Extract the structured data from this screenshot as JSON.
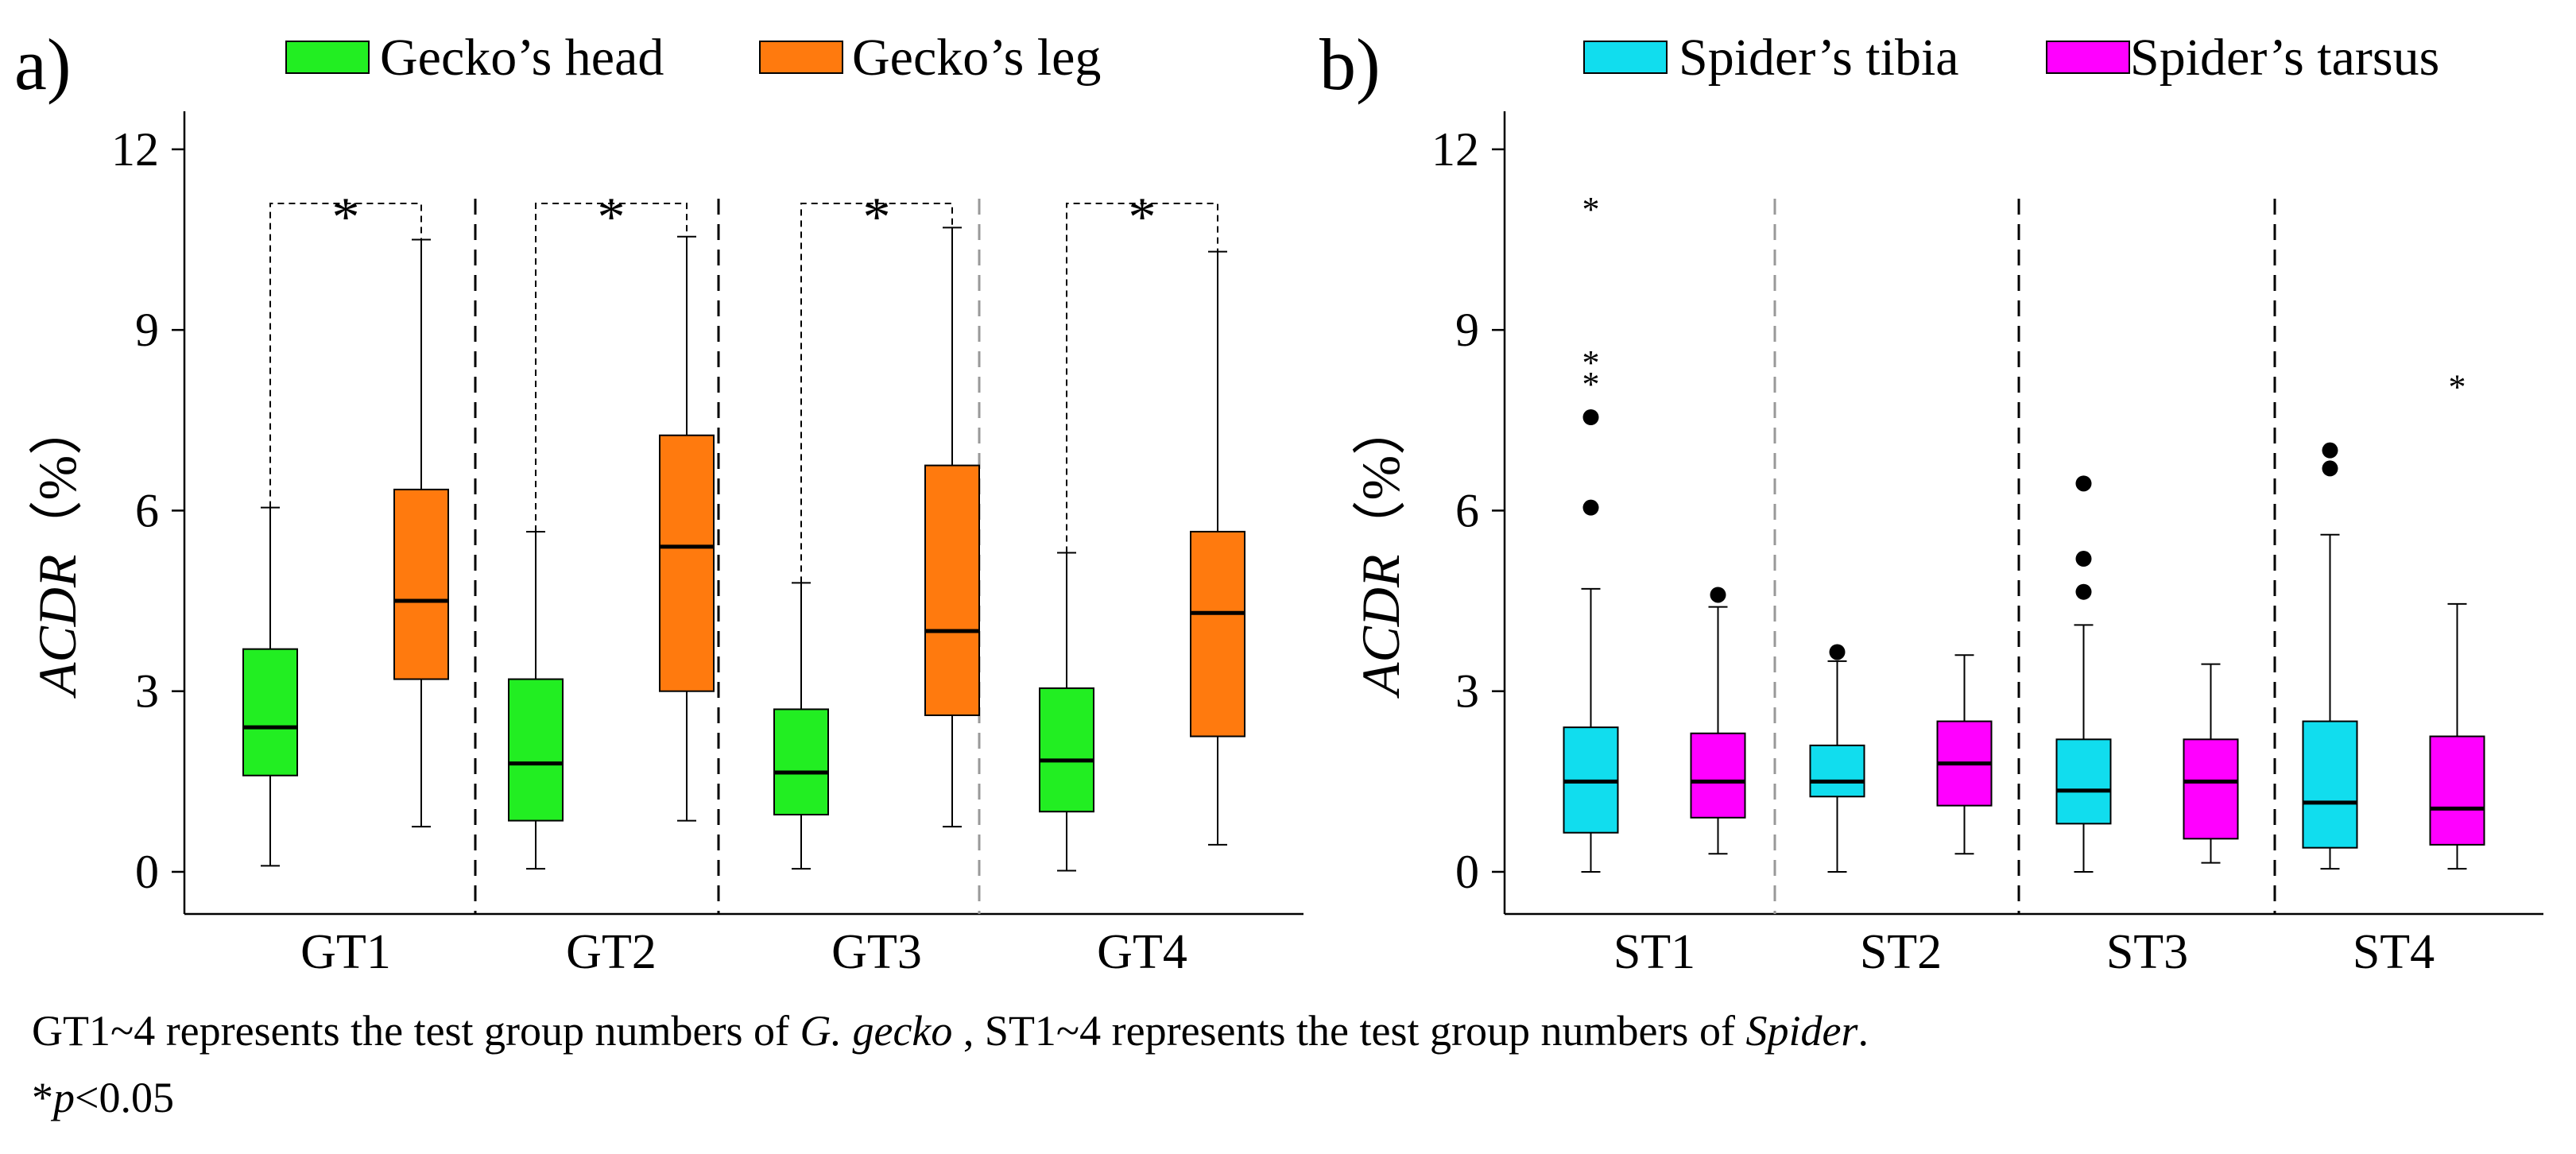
{
  "chart_data": [
    {
      "type": "boxplot",
      "panel_label": "a)",
      "ylabel_italic": "ACDR",
      "ylabel_unit": "（%）",
      "yticks": [
        0,
        3,
        6,
        9,
        12
      ],
      "ylim": [
        -0.7,
        12.5
      ],
      "categories": [
        "GT1",
        "GT2",
        "GT3",
        "GT4"
      ],
      "series": [
        {
          "name": "Gecko’s head",
          "color": "#22ee22",
          "boxes": [
            {
              "min": 0.1,
              "q1": 1.6,
              "median": 2.4,
              "q3": 3.7,
              "max": 6.05
            },
            {
              "min": 0.05,
              "q1": 0.85,
              "median": 1.8,
              "q3": 3.2,
              "max": 5.65
            },
            {
              "min": 0.05,
              "q1": 0.95,
              "median": 1.65,
              "q3": 2.7,
              "max": 4.8
            },
            {
              "min": 0.02,
              "q1": 1.0,
              "median": 1.85,
              "q3": 3.05,
              "max": 5.3
            }
          ]
        },
        {
          "name": "Gecko’s leg",
          "color": "#ff7a0e",
          "boxes": [
            {
              "min": 0.75,
              "q1": 3.2,
              "median": 4.5,
              "q3": 6.35,
              "max": 10.5
            },
            {
              "min": 0.85,
              "q1": 3.0,
              "median": 5.4,
              "q3": 7.25,
              "max": 10.55
            },
            {
              "min": 0.75,
              "q1": 2.6,
              "median": 4.0,
              "q3": 6.75,
              "max": 10.7
            },
            {
              "min": 0.45,
              "q1": 2.25,
              "median": 4.3,
              "q3": 5.65,
              "max": 10.3
            }
          ]
        }
      ],
      "outliers": [],
      "significance": [
        {
          "group": "GT1",
          "label": "*",
          "bracket_y": 11.1
        },
        {
          "group": "GT2",
          "label": "*",
          "bracket_y": 11.1
        },
        {
          "group": "GT3",
          "label": "*",
          "bracket_y": 11.1
        },
        {
          "group": "GT4",
          "label": "*",
          "bracket_y": 11.1
        }
      ]
    },
    {
      "type": "boxplot",
      "panel_label": "b)",
      "ylabel_italic": "ACDR",
      "ylabel_unit": "（%）",
      "yticks": [
        0,
        3,
        6,
        9,
        12
      ],
      "ylim": [
        -0.7,
        12.5
      ],
      "categories": [
        "ST1",
        "ST2",
        "ST3",
        "ST4"
      ],
      "series": [
        {
          "name": "Spider’s tibia",
          "color": "#11ddee",
          "boxes": [
            {
              "min": 0.0,
              "q1": 0.65,
              "median": 1.5,
              "q3": 2.4,
              "max": 4.7
            },
            {
              "min": 0.0,
              "q1": 1.25,
              "median": 1.5,
              "q3": 2.1,
              "max": 3.5
            },
            {
              "min": 0.0,
              "q1": 0.8,
              "median": 1.35,
              "q3": 2.2,
              "max": 4.1
            },
            {
              "min": 0.05,
              "q1": 0.4,
              "median": 1.15,
              "q3": 2.5,
              "max": 5.6
            }
          ]
        },
        {
          "name": "Spider’s tarsus",
          "color": "#ff00ff",
          "boxes": [
            {
              "min": 0.3,
              "q1": 0.9,
              "median": 1.5,
              "q3": 2.3,
              "max": 4.4
            },
            {
              "min": 0.3,
              "q1": 1.1,
              "median": 1.8,
              "q3": 2.5,
              "max": 3.6
            },
            {
              "min": 0.15,
              "q1": 0.55,
              "median": 1.5,
              "q3": 2.2,
              "max": 3.45
            },
            {
              "min": 0.05,
              "q1": 0.45,
              "median": 1.05,
              "q3": 2.25,
              "max": 4.45
            }
          ]
        }
      ],
      "outliers": [
        {
          "group": "ST1",
          "series": 0,
          "kind": "dot",
          "values": [
            6.05,
            7.55
          ]
        },
        {
          "group": "ST1",
          "series": 0,
          "kind": "star",
          "values": [
            8.2,
            8.55,
            11.1
          ]
        },
        {
          "group": "ST1",
          "series": 1,
          "kind": "dot",
          "values": [
            4.6
          ]
        },
        {
          "group": "ST2",
          "series": 0,
          "kind": "dot",
          "values": [
            3.65
          ]
        },
        {
          "group": "ST3",
          "series": 0,
          "kind": "dot",
          "values": [
            4.65,
            5.2,
            6.45
          ]
        },
        {
          "group": "ST4",
          "series": 0,
          "kind": "dot",
          "values": [
            6.7,
            7.0
          ]
        },
        {
          "group": "ST4",
          "series": 1,
          "kind": "star",
          "values": [
            8.15
          ]
        }
      ],
      "significance": []
    }
  ],
  "caption": {
    "line1_part1": "GT1~4 represents the test group numbers of ",
    "line1_species": "G. gecko",
    "line1_part2": " , ST1~4 represents the test group numbers of ",
    "line1_spider": "Spider",
    "line1_end": ".",
    "line2_star": "*",
    "line2_p": "p",
    "line2_rest": "<0.05"
  }
}
